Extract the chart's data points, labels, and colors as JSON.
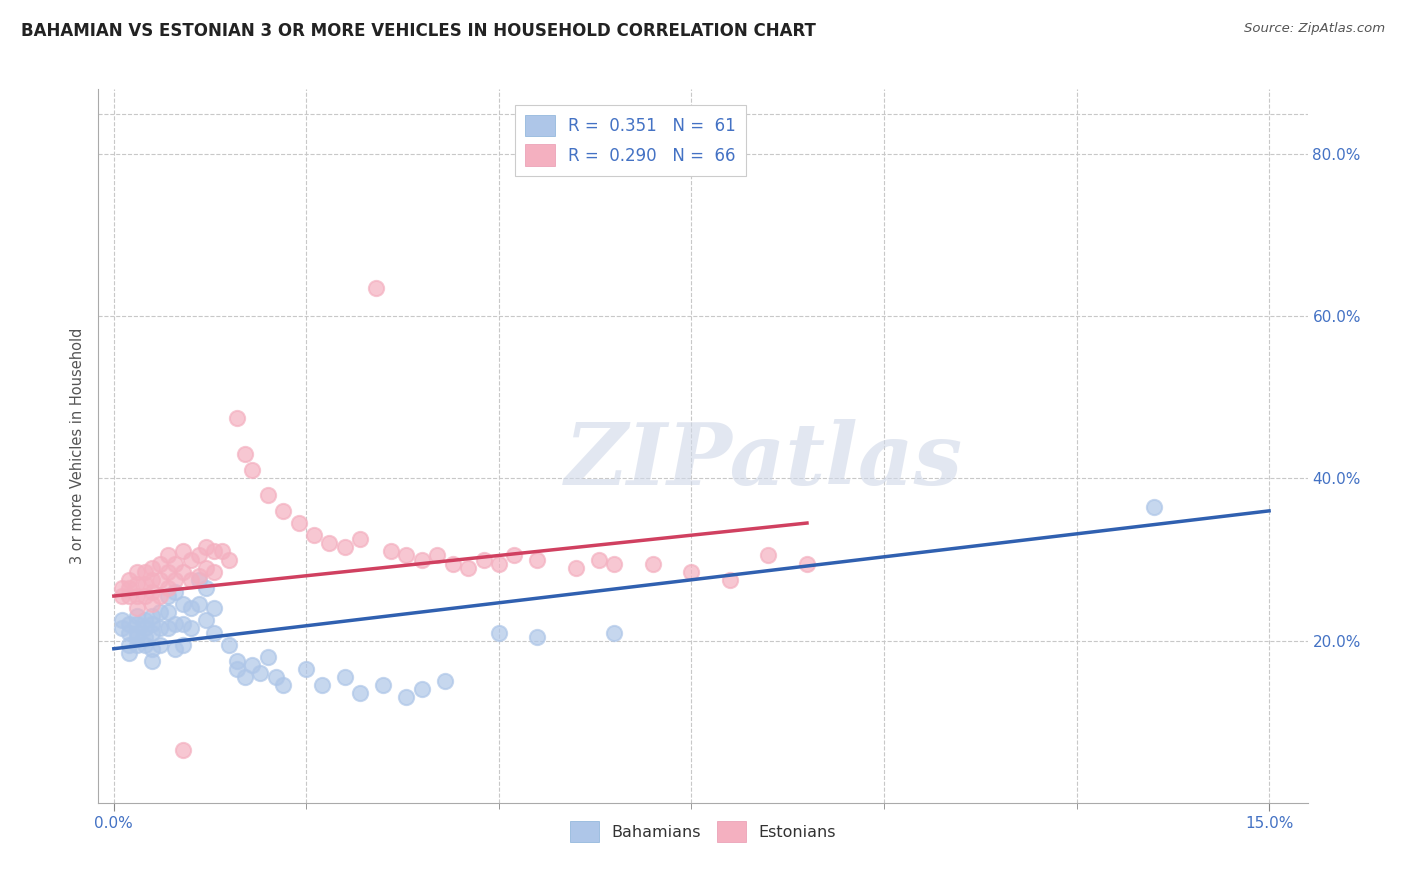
{
  "title": "BAHAMIAN VS ESTONIAN 3 OR MORE VEHICLES IN HOUSEHOLD CORRELATION CHART",
  "source": "Source: ZipAtlas.com",
  "ylabel_label": "3 or more Vehicles in Household",
  "legend_entries": [
    {
      "label": "R =  0.351   N =  61",
      "color": "#aec6e8"
    },
    {
      "label": "R =  0.290   N =  66",
      "color": "#f4b8c8"
    }
  ],
  "bahamian_color": "#aec6e8",
  "estonian_color": "#f4b0c0",
  "bahamian_line_color": "#3060b0",
  "estonian_line_color": "#d04060",
  "watermark_text": "ZIPatlas",
  "bahamian_scatter": [
    [
      0.001,
      0.225
    ],
    [
      0.001,
      0.215
    ],
    [
      0.002,
      0.22
    ],
    [
      0.002,
      0.21
    ],
    [
      0.002,
      0.195
    ],
    [
      0.002,
      0.185
    ],
    [
      0.003,
      0.23
    ],
    [
      0.003,
      0.22
    ],
    [
      0.003,
      0.21
    ],
    [
      0.003,
      0.205
    ],
    [
      0.003,
      0.195
    ],
    [
      0.004,
      0.225
    ],
    [
      0.004,
      0.215
    ],
    [
      0.004,
      0.205
    ],
    [
      0.004,
      0.195
    ],
    [
      0.005,
      0.23
    ],
    [
      0.005,
      0.22
    ],
    [
      0.005,
      0.21
    ],
    [
      0.005,
      0.19
    ],
    [
      0.005,
      0.175
    ],
    [
      0.006,
      0.235
    ],
    [
      0.006,
      0.215
    ],
    [
      0.006,
      0.195
    ],
    [
      0.007,
      0.255
    ],
    [
      0.007,
      0.235
    ],
    [
      0.007,
      0.215
    ],
    [
      0.008,
      0.26
    ],
    [
      0.008,
      0.22
    ],
    [
      0.008,
      0.19
    ],
    [
      0.009,
      0.245
    ],
    [
      0.009,
      0.22
    ],
    [
      0.009,
      0.195
    ],
    [
      0.01,
      0.24
    ],
    [
      0.01,
      0.215
    ],
    [
      0.011,
      0.275
    ],
    [
      0.011,
      0.245
    ],
    [
      0.012,
      0.265
    ],
    [
      0.012,
      0.225
    ],
    [
      0.013,
      0.24
    ],
    [
      0.013,
      0.21
    ],
    [
      0.015,
      0.195
    ],
    [
      0.016,
      0.175
    ],
    [
      0.016,
      0.165
    ],
    [
      0.017,
      0.155
    ],
    [
      0.018,
      0.17
    ],
    [
      0.019,
      0.16
    ],
    [
      0.02,
      0.18
    ],
    [
      0.021,
      0.155
    ],
    [
      0.022,
      0.145
    ],
    [
      0.025,
      0.165
    ],
    [
      0.027,
      0.145
    ],
    [
      0.03,
      0.155
    ],
    [
      0.032,
      0.135
    ],
    [
      0.035,
      0.145
    ],
    [
      0.038,
      0.13
    ],
    [
      0.04,
      0.14
    ],
    [
      0.043,
      0.15
    ],
    [
      0.05,
      0.21
    ],
    [
      0.055,
      0.205
    ],
    [
      0.065,
      0.21
    ],
    [
      0.135,
      0.365
    ]
  ],
  "estonian_scatter": [
    [
      0.001,
      0.265
    ],
    [
      0.001,
      0.255
    ],
    [
      0.002,
      0.275
    ],
    [
      0.002,
      0.265
    ],
    [
      0.002,
      0.255
    ],
    [
      0.003,
      0.285
    ],
    [
      0.003,
      0.27
    ],
    [
      0.003,
      0.255
    ],
    [
      0.003,
      0.24
    ],
    [
      0.004,
      0.285
    ],
    [
      0.004,
      0.27
    ],
    [
      0.004,
      0.255
    ],
    [
      0.005,
      0.29
    ],
    [
      0.005,
      0.275
    ],
    [
      0.005,
      0.26
    ],
    [
      0.005,
      0.245
    ],
    [
      0.006,
      0.295
    ],
    [
      0.006,
      0.275
    ],
    [
      0.006,
      0.255
    ],
    [
      0.007,
      0.305
    ],
    [
      0.007,
      0.285
    ],
    [
      0.007,
      0.265
    ],
    [
      0.008,
      0.295
    ],
    [
      0.008,
      0.275
    ],
    [
      0.009,
      0.31
    ],
    [
      0.009,
      0.285
    ],
    [
      0.009,
      0.065
    ],
    [
      0.01,
      0.3
    ],
    [
      0.01,
      0.275
    ],
    [
      0.011,
      0.305
    ],
    [
      0.011,
      0.28
    ],
    [
      0.012,
      0.315
    ],
    [
      0.012,
      0.29
    ],
    [
      0.013,
      0.31
    ],
    [
      0.013,
      0.285
    ],
    [
      0.014,
      0.31
    ],
    [
      0.015,
      0.3
    ],
    [
      0.016,
      0.475
    ],
    [
      0.017,
      0.43
    ],
    [
      0.018,
      0.41
    ],
    [
      0.02,
      0.38
    ],
    [
      0.022,
      0.36
    ],
    [
      0.024,
      0.345
    ],
    [
      0.026,
      0.33
    ],
    [
      0.028,
      0.32
    ],
    [
      0.03,
      0.315
    ],
    [
      0.032,
      0.325
    ],
    [
      0.034,
      0.635
    ],
    [
      0.036,
      0.31
    ],
    [
      0.038,
      0.305
    ],
    [
      0.04,
      0.3
    ],
    [
      0.042,
      0.305
    ],
    [
      0.044,
      0.295
    ],
    [
      0.046,
      0.29
    ],
    [
      0.048,
      0.3
    ],
    [
      0.05,
      0.295
    ],
    [
      0.052,
      0.305
    ],
    [
      0.055,
      0.3
    ],
    [
      0.06,
      0.29
    ],
    [
      0.063,
      0.3
    ],
    [
      0.065,
      0.295
    ],
    [
      0.07,
      0.295
    ],
    [
      0.075,
      0.285
    ],
    [
      0.08,
      0.275
    ],
    [
      0.085,
      0.305
    ],
    [
      0.09,
      0.295
    ]
  ],
  "bahamian_line": {
    "x": [
      0.0,
      0.15
    ],
    "y": [
      0.19,
      0.36
    ]
  },
  "estonian_line": {
    "x": [
      0.0,
      0.09
    ],
    "y": [
      0.255,
      0.345
    ]
  },
  "xlim": [
    -0.002,
    0.155
  ],
  "ylim": [
    0.0,
    0.88
  ],
  "yticks": [
    0.2,
    0.4,
    0.6,
    0.8
  ],
  "xtick_positions": [
    0.0,
    0.15
  ],
  "xtick_labels": [
    "0.0%",
    "15.0%"
  ],
  "xtick_minor_positions": [
    0.025,
    0.05,
    0.075,
    0.1,
    0.125
  ],
  "title_fontsize": 12,
  "axis_color": "#4472c4",
  "tick_color": "#333333",
  "background_color": "#ffffff",
  "grid_color": "#c8c8c8"
}
